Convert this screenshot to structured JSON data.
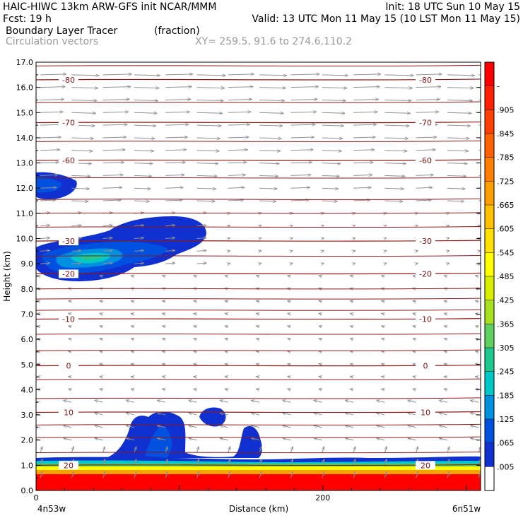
{
  "header": {
    "line1_left": "HAIC-HIWC 13km ARW-GFS init   NCAR/MMM",
    "line1_right": "Init: 18 UTC Sun 10 May 15",
    "line2_left": "Fcst:   19 h",
    "line2_right": "Valid: 13 UTC Mon 11 May 15 (10 LST Mon 11 May 15)",
    "line3_left": "Boundary Layer Tracer",
    "line3_mid": "(fraction)",
    "line4_left": "Circulation vectors",
    "line4_mid": "XY= 259.5, 91.6 to 274.6,110.2"
  },
  "chart_data": {
    "type": "cross-section",
    "xlabel": "Distance (km)",
    "ylabel": "Height (km)",
    "xlim": [
      0,
      310
    ],
    "ylim": [
      0,
      17
    ],
    "x_ticks": [
      0,
      200
    ],
    "x_endpoint_labels": [
      "4n53w",
      "6n51w"
    ],
    "y_ticks": [
      "0.0",
      "1.0",
      "2.0",
      "3.0",
      "4.0",
      "5.0",
      "6.0",
      "7.0",
      "8.0",
      "9.0",
      "10.0",
      "11.0",
      "12.0",
      "13.0",
      "14.0",
      "15.0",
      "16.0",
      "17.0"
    ],
    "colorbar": {
      "labels": [
        "-",
        ".905",
        ".845",
        ".785",
        ".725",
        ".665",
        ".605",
        ".545",
        ".485",
        ".425",
        ".365",
        ".305",
        ".245",
        ".185",
        ".125",
        ".065",
        ".005"
      ],
      "colors": [
        "#ff0000",
        "#ff2000",
        "#ff4000",
        "#ff6000",
        "#ff8000",
        "#ffa000",
        "#ffc000",
        "#ffe000",
        "#ffff00",
        "#d8f000",
        "#a8e020",
        "#60d060",
        "#20c890",
        "#00c8c8",
        "#0090e0",
        "#0050e0",
        "#1030d0",
        "#ffffff"
      ]
    },
    "contour_lines": [
      {
        "label": "-80",
        "height_km": 16.3
      },
      {
        "label": "-70",
        "height_km": 14.6
      },
      {
        "label": "-60",
        "height_km": 13.1
      },
      {
        "label": "-30",
        "height_km": 9.9
      },
      {
        "label": "-20",
        "height_km": 8.6
      },
      {
        "label": "-10",
        "height_km": 6.8
      },
      {
        "label": "0",
        "height_km": 4.95
      },
      {
        "label": "10",
        "height_km": 3.1
      },
      {
        "label": "20",
        "height_km": 1.0
      }
    ],
    "tracer_plumes": [
      {
        "name": "boundary-layer",
        "top_km": 1.3
      },
      {
        "name": "convective-tower",
        "top_km": 3.0
      },
      {
        "name": "upper-outflow",
        "top_km": 10.8
      },
      {
        "name": "high-cloud",
        "top_km": 12.5
      }
    ],
    "colors": {
      "contour": "#8b1a1a",
      "vector": "#909090",
      "frame": "#000000"
    }
  }
}
